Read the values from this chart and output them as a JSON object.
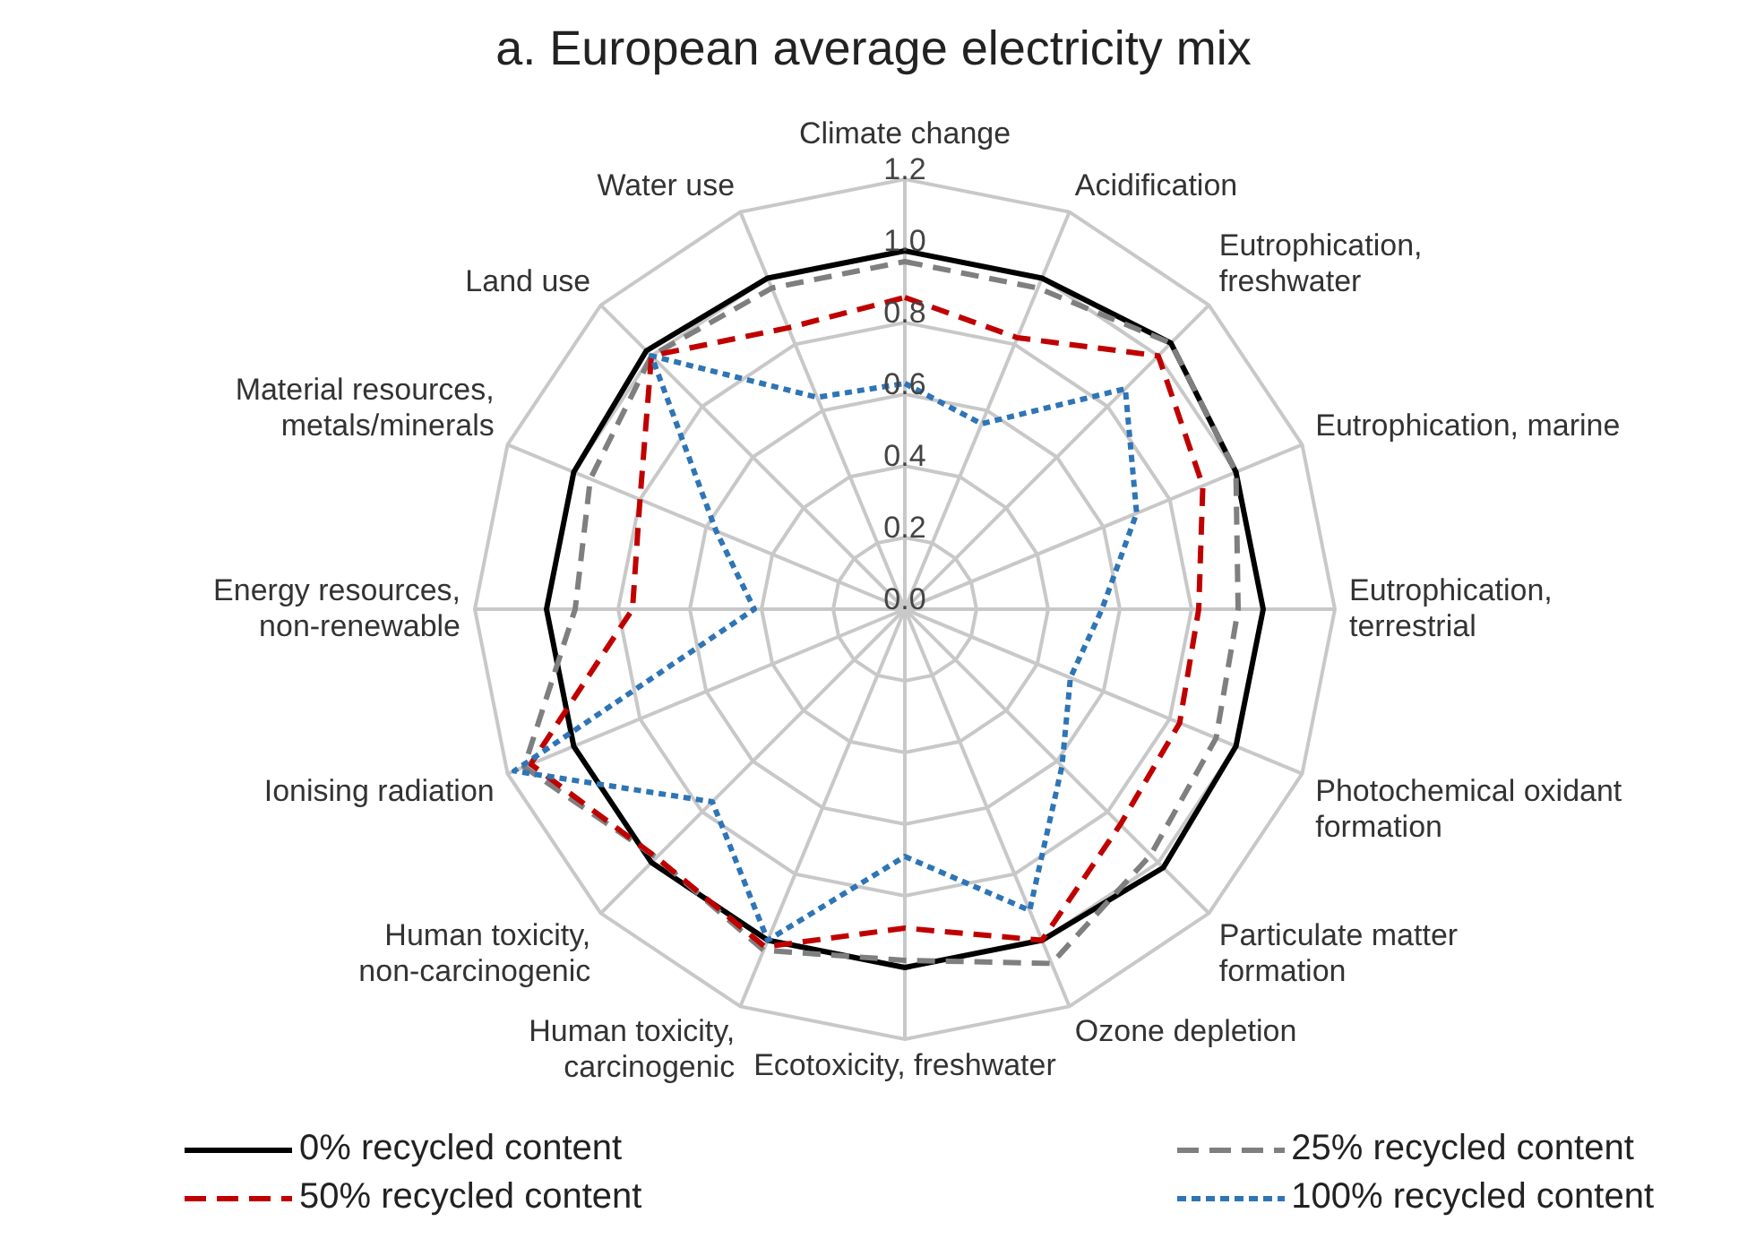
{
  "chart_data": {
    "type": "radar",
    "title": "a. European average electricity mix",
    "categories": [
      "Climate change",
      "Acidification",
      "Eutrophication, freshwater",
      "Eutrophication, marine",
      "Eutrophication, terrestrial",
      "Photochemical oxidant formation",
      "Particulate matter formation",
      "Ozone depletion",
      "Ecotoxicity, freshwater",
      "Human toxicity, carcinogenic",
      "Human toxicity, non-carcinogenic",
      "Ionising radiation",
      "Energy resources, non-renewable",
      "Material resources, metals/minerals",
      "Land use",
      "Water use"
    ],
    "series": [
      {
        "name": "0% recycled content",
        "color": "#000000",
        "line_style": "solid",
        "values": [
          1.0,
          1.0,
          1.05,
          1.0,
          1.0,
          1.0,
          1.02,
          1.0,
          1.0,
          1.0,
          1.0,
          1.0,
          1.0,
          1.0,
          1.02,
          1.0
        ]
      },
      {
        "name": "25% recycled content",
        "color": "#7f7f7f",
        "line_style": "dashed",
        "values": [
          0.97,
          0.97,
          1.05,
          1.0,
          0.93,
          0.94,
          0.97,
          1.07,
          0.98,
          1.03,
          0.98,
          1.15,
          0.92,
          0.95,
          1.0,
          0.97
        ]
      },
      {
        "name": "50% recycled content",
        "color": "#c00000",
        "line_style": "dashed",
        "values": [
          0.87,
          0.82,
          1.0,
          0.9,
          0.82,
          0.83,
          0.85,
          1.0,
          0.89,
          1.02,
          0.98,
          1.13,
          0.76,
          0.8,
          1.0,
          0.85
        ]
      },
      {
        "name": "100% recycled content",
        "color": "#2e75b6",
        "line_style": "dotted",
        "values": [
          0.63,
          0.56,
          0.87,
          0.7,
          0.55,
          0.5,
          0.62,
          0.91,
          0.69,
          1.0,
          0.76,
          1.18,
          0.42,
          0.57,
          1.0,
          0.64
        ]
      }
    ],
    "ylim": [
      0,
      1.2
    ],
    "yticks": [
      {
        "value": 0,
        "label": "0.0"
      },
      {
        "value": 0.2,
        "label": "0.2"
      },
      {
        "value": 0.4,
        "label": "0.4"
      },
      {
        "value": 0.6,
        "label": "0.6"
      },
      {
        "value": 0.8,
        "label": "0.8"
      },
      {
        "value": 1.0,
        "label": "1.0"
      },
      {
        "value": 1.2,
        "label": "1.2"
      }
    ],
    "grid": true,
    "legend": "bottom",
    "marker": "none"
  }
}
